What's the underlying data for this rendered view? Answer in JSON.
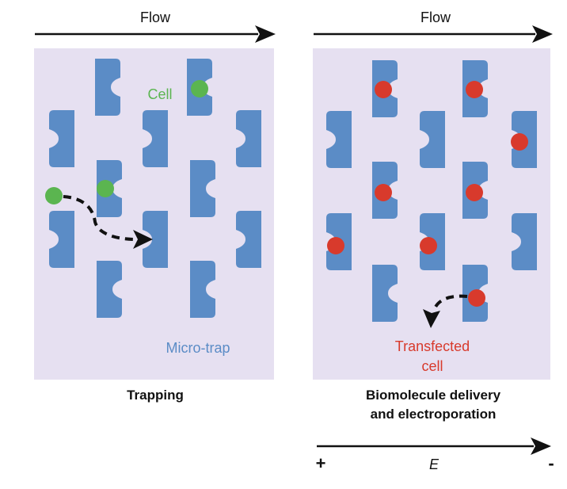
{
  "colors": {
    "panel_bg": "#e6e0f1",
    "trap": "#5b8cc6",
    "cell_green": "#5bb550",
    "cell_red": "#d83a2c",
    "trap_label": "#5b8cc6",
    "arrow": "#111111"
  },
  "left_panel": {
    "flow_label": "Flow",
    "cell_label": "Cell",
    "trap_label": "Micro-trap",
    "caption": "Trapping"
  },
  "right_panel": {
    "flow_label": "Flow",
    "transfected_label_line1": "Transfected",
    "transfected_label_line2": "cell",
    "caption_line1": "Biomolecule delivery",
    "caption_line2": "and electroporation",
    "field_label": "E",
    "plus_label": "+",
    "minus_label": "-"
  },
  "icons": {
    "trap": "micro-trap-icon",
    "cell": "cell-icon",
    "arrow": "flow-arrow-icon",
    "path": "cell-path-arrow-icon"
  }
}
